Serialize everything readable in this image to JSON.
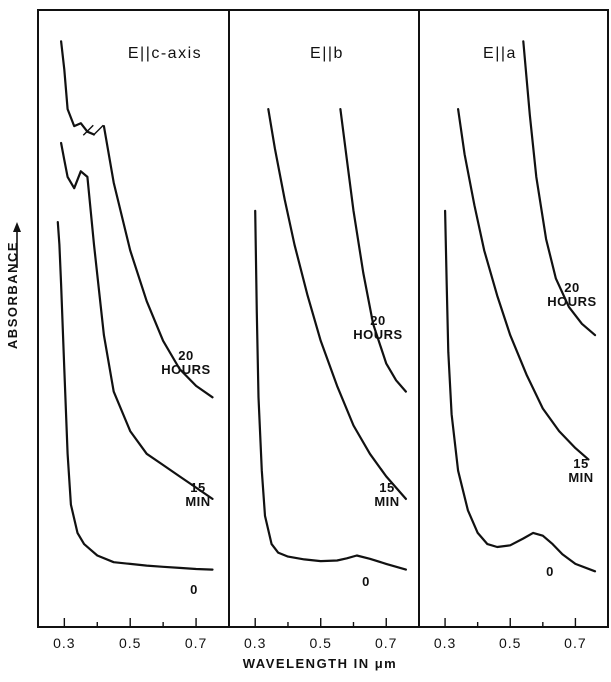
{
  "chart_data": {
    "type": "line",
    "xlabel": "WAVELENGTH IN μm",
    "ylabel": "ABSORBANCE",
    "y_arrow": true,
    "xlim": [
      0.22,
      0.8
    ],
    "ylim": [
      0,
      1
    ],
    "xticks": [
      0.3,
      0.5,
      0.7
    ],
    "xtick_labels": [
      "0.3",
      "0.5",
      "0.7"
    ],
    "minor_xticks": [
      0.4,
      0.6
    ],
    "panels": [
      {
        "title": "E||c-axis",
        "series": [
          {
            "name": "20 HOURS",
            "label_lines": [
              "20",
              "HOURS"
            ],
            "break_at": 0.4,
            "x": [
              0.29,
              0.3,
              0.31,
              0.33,
              0.35,
              0.37,
              0.39
            ],
            "y": [
              0.98,
              0.93,
              0.86,
              0.83,
              0.835,
              0.82,
              0.815
            ],
            "x2": [
              0.42,
              0.45,
              0.5,
              0.55,
              0.6,
              0.65,
              0.7,
              0.75
            ],
            "y2": [
              0.83,
              0.73,
              0.61,
              0.52,
              0.45,
              0.4,
              0.37,
              0.35
            ]
          },
          {
            "name": "15 MIN",
            "label_lines": [
              "15",
              "MIN"
            ],
            "x": [
              0.29,
              0.3,
              0.31,
              0.33,
              0.35,
              0.37,
              0.39,
              0.42,
              0.45,
              0.5,
              0.55,
              0.6,
              0.65,
              0.7,
              0.75
            ],
            "y": [
              0.8,
              0.77,
              0.74,
              0.72,
              0.75,
              0.74,
              0.62,
              0.46,
              0.36,
              0.29,
              0.25,
              0.23,
              0.21,
              0.19,
              0.17
            ]
          },
          {
            "name": "0",
            "label_lines": [
              "0"
            ],
            "x": [
              0.28,
              0.285,
              0.29,
              0.3,
              0.31,
              0.32,
              0.34,
              0.36,
              0.38,
              0.4,
              0.45,
              0.5,
              0.55,
              0.6,
              0.65,
              0.7,
              0.75
            ],
            "y": [
              0.66,
              0.62,
              0.55,
              0.4,
              0.25,
              0.16,
              0.11,
              0.09,
              0.08,
              0.07,
              0.058,
              0.055,
              0.052,
              0.05,
              0.048,
              0.046,
              0.045
            ]
          }
        ]
      },
      {
        "title": "E||b",
        "series": [
          {
            "name": "20 HOURS",
            "label_lines": [
              "20",
              "HOURS"
            ],
            "x": [
              0.56,
              0.58,
              0.6,
              0.63,
              0.66,
              0.7,
              0.73,
              0.76
            ],
            "y": [
              0.86,
              0.77,
              0.68,
              0.57,
              0.48,
              0.41,
              0.38,
              0.36
            ]
          },
          {
            "name": "15 MIN",
            "label_lines": [
              "15",
              "MIN"
            ],
            "x": [
              0.34,
              0.36,
              0.39,
              0.42,
              0.46,
              0.5,
              0.55,
              0.6,
              0.65,
              0.7,
              0.76
            ],
            "y": [
              0.86,
              0.79,
              0.7,
              0.62,
              0.53,
              0.45,
              0.37,
              0.3,
              0.25,
              0.21,
              0.17
            ]
          },
          {
            "name": "0",
            "label_lines": [
              "0"
            ],
            "x": [
              0.3,
              0.305,
              0.31,
              0.32,
              0.33,
              0.35,
              0.37,
              0.4,
              0.45,
              0.5,
              0.55,
              0.58,
              0.61,
              0.65,
              0.7,
              0.76
            ],
            "y": [
              0.68,
              0.5,
              0.35,
              0.22,
              0.14,
              0.09,
              0.075,
              0.068,
              0.063,
              0.06,
              0.061,
              0.065,
              0.07,
              0.064,
              0.055,
              0.045
            ]
          }
        ]
      },
      {
        "title": "E||a",
        "series": [
          {
            "name": "20 HOURS",
            "label_lines": [
              "20",
              "HOURS"
            ],
            "x": [
              0.54,
              0.56,
              0.58,
              0.61,
              0.64,
              0.68,
              0.72,
              0.76
            ],
            "y": [
              0.98,
              0.85,
              0.74,
              0.63,
              0.56,
              0.51,
              0.48,
              0.46
            ]
          },
          {
            "name": "15 MIN",
            "label_lines": [
              "15",
              "MIN"
            ],
            "x": [
              0.34,
              0.36,
              0.39,
              0.42,
              0.46,
              0.5,
              0.55,
              0.6,
              0.65,
              0.7,
              0.74
            ],
            "y": [
              0.86,
              0.78,
              0.69,
              0.61,
              0.53,
              0.46,
              0.39,
              0.33,
              0.29,
              0.26,
              0.24
            ]
          },
          {
            "name": "0",
            "label_lines": [
              "0"
            ],
            "x": [
              0.3,
              0.305,
              0.31,
              0.32,
              0.34,
              0.37,
              0.4,
              0.43,
              0.46,
              0.5,
              0.54,
              0.57,
              0.6,
              0.63,
              0.66,
              0.7,
              0.76
            ],
            "y": [
              0.68,
              0.55,
              0.43,
              0.32,
              0.22,
              0.15,
              0.11,
              0.09,
              0.085,
              0.088,
              0.1,
              0.11,
              0.105,
              0.09,
              0.072,
              0.055,
              0.042
            ]
          }
        ]
      }
    ]
  }
}
